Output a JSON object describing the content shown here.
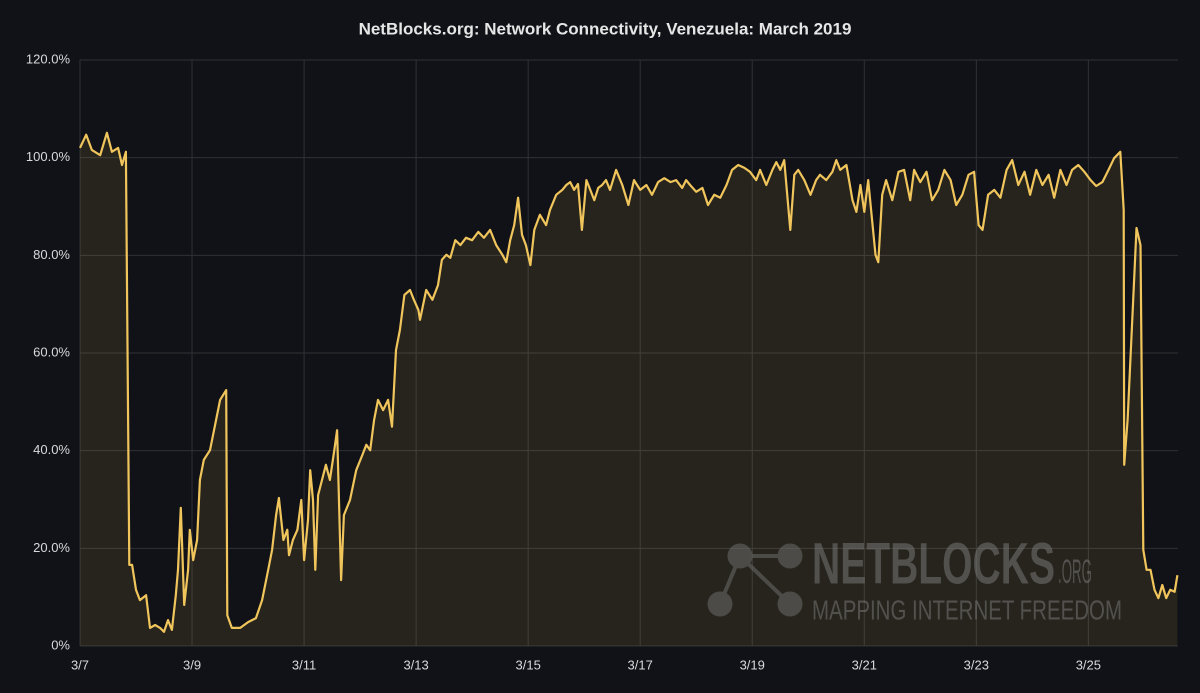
{
  "chart_data": {
    "type": "area",
    "title": "NetBlocks.org: Network Connectivity, Venezuela: March 2019",
    "color": "#f0c55c",
    "grid": true,
    "xlim": [
      7,
      26.6
    ],
    "ylim": [
      0,
      120
    ],
    "xticks": [
      {
        "value": 7,
        "label": "3/7"
      },
      {
        "value": 9,
        "label": "3/9"
      },
      {
        "value": 11,
        "label": "3/11"
      },
      {
        "value": 13,
        "label": "3/13"
      },
      {
        "value": 15,
        "label": "3/15"
      },
      {
        "value": 17,
        "label": "3/17"
      },
      {
        "value": 19,
        "label": "3/19"
      },
      {
        "value": 21,
        "label": "3/21"
      },
      {
        "value": 23,
        "label": "3/23"
      },
      {
        "value": 25,
        "label": "3/25"
      }
    ],
    "yticks": [
      {
        "value": 0,
        "label": "0%"
      },
      {
        "value": 20,
        "label": "20.0%"
      },
      {
        "value": 40,
        "label": "40.0%"
      },
      {
        "value": 60,
        "label": "60.0%"
      },
      {
        "value": 80,
        "label": "80.0%"
      },
      {
        "value": 100,
        "label": "100.0%"
      },
      {
        "value": 120,
        "label": "120.0%"
      }
    ],
    "x": [
      7.0,
      7.11,
      7.21,
      7.36,
      7.48,
      7.57,
      7.68,
      7.75,
      7.82,
      7.88,
      7.93,
      8.0,
      8.07,
      8.18,
      8.25,
      8.34,
      8.43,
      8.5,
      8.57,
      8.64,
      8.71,
      8.75,
      8.8,
      8.86,
      8.93,
      8.96,
      9.02,
      9.09,
      9.14,
      9.21,
      9.32,
      9.43,
      9.5,
      9.61,
      9.63,
      9.71,
      9.86,
      10.0,
      10.14,
      10.25,
      10.36,
      10.43,
      10.5,
      10.55,
      10.63,
      10.7,
      10.73,
      10.8,
      10.88,
      10.95,
      11.0,
      11.07,
      11.11,
      11.16,
      11.2,
      11.25,
      11.32,
      11.39,
      11.46,
      11.54,
      11.59,
      11.66,
      11.71,
      11.82,
      11.93,
      12.04,
      12.11,
      12.18,
      12.25,
      12.32,
      12.41,
      12.5,
      12.57,
      12.64,
      12.71,
      12.79,
      12.89,
      12.96,
      13.04,
      13.07,
      13.18,
      13.29,
      13.39,
      13.46,
      13.54,
      13.61,
      13.7,
      13.79,
      13.89,
      14.0,
      14.11,
      14.21,
      14.32,
      14.43,
      14.54,
      14.61,
      14.68,
      14.75,
      14.82,
      14.89,
      14.96,
      15.04,
      15.11,
      15.21,
      15.32,
      15.39,
      15.5,
      15.61,
      15.68,
      15.75,
      15.82,
      15.89,
      15.96,
      16.04,
      16.11,
      16.18,
      16.25,
      16.32,
      16.39,
      16.46,
      16.57,
      16.68,
      16.79,
      16.89,
      17.0,
      17.11,
      17.21,
      17.32,
      17.43,
      17.54,
      17.64,
      17.75,
      17.82,
      17.89,
      18.0,
      18.11,
      18.21,
      18.32,
      18.43,
      18.54,
      18.64,
      18.75,
      18.86,
      18.96,
      19.07,
      19.14,
      19.25,
      19.36,
      19.43,
      19.5,
      19.57,
      19.68,
      19.75,
      19.82,
      19.93,
      20.04,
      20.14,
      20.21,
      20.32,
      20.43,
      20.5,
      20.57,
      20.68,
      20.79,
      20.86,
      20.93,
      21.0,
      21.07,
      21.14,
      21.2,
      21.25,
      21.32,
      21.39,
      21.5,
      21.61,
      21.71,
      21.82,
      21.89,
      22.0,
      22.11,
      22.21,
      22.32,
      22.43,
      22.54,
      22.64,
      22.75,
      22.86,
      22.96,
      23.04,
      23.11,
      23.21,
      23.32,
      23.43,
      23.54,
      23.64,
      23.75,
      23.86,
      23.96,
      24.07,
      24.18,
      24.29,
      24.39,
      24.5,
      24.61,
      24.71,
      24.82,
      24.93,
      25.04,
      25.14,
      25.25,
      25.36,
      25.46,
      25.57,
      25.63,
      25.64,
      25.7,
      25.75,
      25.8,
      25.86,
      25.93,
      25.98,
      26.04,
      26.11,
      26.18,
      26.25,
      26.32,
      26.39,
      26.46,
      26.54,
      26.59
    ],
    "values": [
      102.0,
      104.7,
      101.6,
      100.5,
      105.1,
      101.2,
      102.0,
      98.5,
      101.2,
      16.6,
      16.6,
      11.5,
      9.4,
      10.4,
      3.7,
      4.3,
      3.7,
      2.9,
      5.3,
      3.3,
      10.4,
      15.6,
      28.3,
      8.4,
      15.6,
      23.8,
      17.6,
      21.7,
      34.0,
      38.1,
      40.1,
      46.3,
      50.4,
      52.4,
      6.3,
      3.7,
      3.7,
      4.9,
      5.7,
      9.4,
      15.6,
      19.7,
      26.8,
      30.3,
      21.7,
      23.8,
      18.6,
      21.7,
      23.8,
      29.9,
      17.6,
      25.8,
      36.0,
      29.9,
      15.6,
      30.9,
      34.0,
      37.1,
      34.0,
      40.1,
      44.2,
      13.5,
      26.8,
      29.9,
      36.0,
      39.1,
      41.2,
      40.1,
      46.3,
      50.4,
      48.3,
      50.4,
      44.9,
      60.6,
      64.7,
      71.9,
      72.9,
      70.9,
      68.8,
      66.8,
      72.9,
      70.9,
      73.9,
      79.1,
      80.1,
      79.5,
      83.1,
      82.1,
      83.6,
      83.1,
      84.8,
      83.6,
      85.2,
      82.1,
      80.1,
      78.6,
      83.1,
      86.2,
      91.8,
      84.2,
      82.1,
      78.0,
      85.2,
      88.3,
      86.2,
      89.3,
      92.4,
      93.4,
      94.4,
      95.0,
      93.4,
      94.6,
      85.2,
      95.4,
      93.4,
      91.3,
      93.8,
      94.4,
      95.4,
      93.4,
      97.5,
      94.4,
      90.3,
      95.4,
      93.4,
      94.4,
      92.4,
      95.0,
      95.8,
      95.0,
      95.4,
      93.8,
      95.4,
      94.4,
      93.0,
      93.8,
      90.3,
      92.4,
      91.8,
      94.4,
      97.5,
      98.5,
      97.9,
      97.1,
      95.4,
      97.5,
      94.4,
      97.5,
      99.1,
      97.5,
      99.5,
      85.2,
      96.5,
      97.5,
      95.4,
      92.4,
      95.4,
      96.5,
      95.4,
      97.1,
      99.5,
      97.5,
      98.5,
      91.3,
      88.9,
      94.4,
      88.9,
      95.4,
      87.2,
      80.1,
      78.6,
      92.4,
      95.4,
      91.3,
      97.1,
      97.5,
      91.3,
      97.5,
      95.0,
      97.1,
      91.3,
      93.4,
      97.5,
      95.4,
      90.3,
      92.4,
      96.5,
      97.1,
      86.2,
      85.2,
      92.4,
      93.4,
      91.8,
      97.5,
      99.5,
      94.4,
      97.1,
      92.4,
      97.5,
      94.4,
      96.5,
      91.8,
      97.5,
      94.4,
      97.5,
      98.5,
      97.1,
      95.4,
      94.2,
      95.0,
      97.5,
      99.9,
      101.2,
      89.3,
      37.1,
      46.3,
      58.6,
      70.9,
      85.6,
      82.1,
      19.7,
      15.6,
      15.6,
      11.5,
      9.8,
      12.5,
      9.8,
      11.5,
      11.1,
      14.5
    ]
  },
  "watermark": {
    "name": "NETBLOCKS",
    "suffix": ".ORG",
    "tagline": "MAPPING INTERNET FREEDOM"
  }
}
